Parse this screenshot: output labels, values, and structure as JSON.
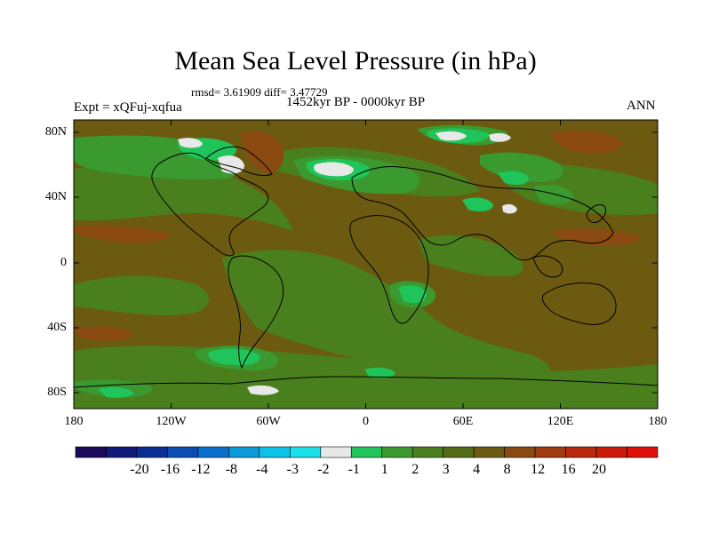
{
  "title": "Mean Sea Level Pressure (in hPa)",
  "stats": "rmsd= 3.61909 diff= 3.47729",
  "period": "1452kyr BP - 0000kyr BP",
  "experiment": "Expt = xQFuj-xqfua",
  "season": "ANN",
  "lat_ticks": [
    "80N",
    "40N",
    "0",
    "40S",
    "80S"
  ],
  "lon_ticks": [
    "180",
    "120W",
    "60W",
    "0",
    "60E",
    "120E",
    "180"
  ],
  "colorbar": {
    "colors": [
      "#1a0a5a",
      "#101a78",
      "#0a2f93",
      "#0b4db0",
      "#0a6fcc",
      "#0a9ad8",
      "#0ac3e6",
      "#1ae0e8",
      "#e8e8e8",
      "#1fc55a",
      "#3a9a30",
      "#4a7f1e",
      "#556b14",
      "#6b5a10",
      "#8a4a12",
      "#a03a10",
      "#b82a0c",
      "#cc1a0a",
      "#e0100a"
    ],
    "labels": [
      "-20",
      "-16",
      "-12",
      "-8",
      "-4",
      "-3",
      "-2",
      "-1",
      "1",
      "2",
      "3",
      "4",
      "8",
      "12",
      "16",
      "20"
    ]
  },
  "field_colors": {
    "base": "#6b5a10",
    "level_3": "#4a7f1e",
    "level_2": "#3a9a30",
    "level_1": "#1fc55a",
    "near_zero": "#e8e8e8",
    "level_8": "#8a4a12"
  }
}
